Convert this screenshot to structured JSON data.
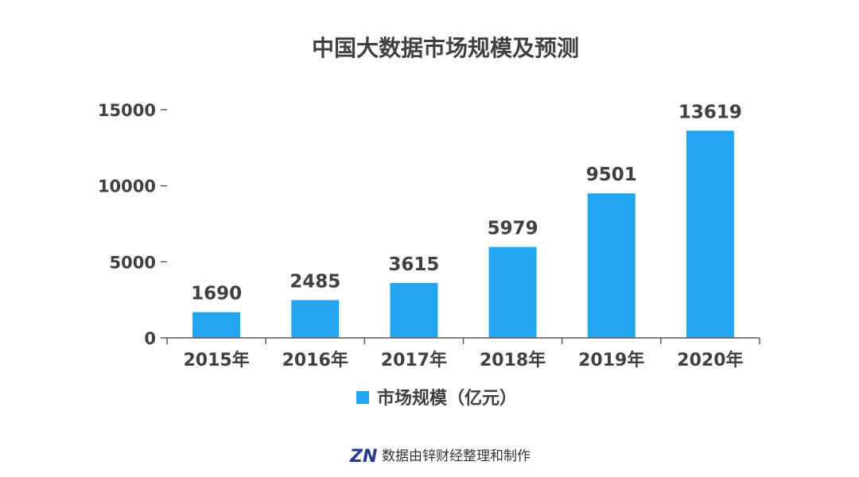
{
  "chart_data": {
    "type": "bar",
    "title": "中国大数据市场规模及预测",
    "categories": [
      "2015年",
      "2016年",
      "2017年",
      "2018年",
      "2019年",
      "2020年"
    ],
    "series": [
      {
        "name": "市场规模（亿元）",
        "values": [
          1690,
          2485,
          3615,
          5979,
          9501,
          13619
        ],
        "color": "#22a5ec"
      }
    ],
    "data_labels": [
      "1690",
      "2485",
      "3615",
      "5979",
      "9501",
      "13619"
    ],
    "ylim": [
      0,
      15000
    ],
    "yticks": [
      0,
      5000,
      10000,
      15000
    ],
    "ytick_labels": [
      "0",
      "5000",
      "10000",
      "15000"
    ],
    "xlabel": "",
    "ylabel": "",
    "grid": false,
    "legend": "bottom-center"
  },
  "credit": {
    "logo": "ZN",
    "text": "数据由锌财经整理和制作",
    "logo_color": "#2a3b8f"
  },
  "colors": {
    "text": "#404040",
    "axis": "#595959"
  }
}
